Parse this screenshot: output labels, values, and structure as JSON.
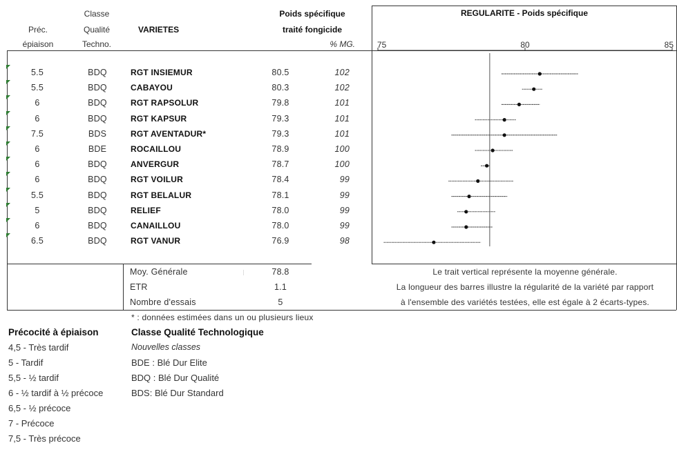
{
  "headers": {
    "prec": [
      "Préc.",
      "épiaison"
    ],
    "classe": [
      "Classe",
      "Qualité",
      "Techno."
    ],
    "varietes": "VARIETES",
    "poids": [
      "Poids spécifique",
      "traité fongicide"
    ],
    "mg": "% MG."
  },
  "rows": [
    {
      "prec": "5.5",
      "classe": "BDQ",
      "variete": "RGT INSIEMUR",
      "poids": "80.5",
      "mg": "102"
    },
    {
      "prec": "5.5",
      "classe": "BDQ",
      "variete": "CABAYOU",
      "poids": "80.3",
      "mg": "102"
    },
    {
      "prec": "6",
      "classe": "BDQ",
      "variete": "RGT RAPSOLUR",
      "poids": "79.8",
      "mg": "101"
    },
    {
      "prec": "6",
      "classe": "BDQ",
      "variete": "RGT KAPSUR",
      "poids": "79.3",
      "mg": "101"
    },
    {
      "prec": "7.5",
      "classe": "BDS",
      "variete": "RGT AVENTADUR*",
      "poids": "79.3",
      "mg": "101"
    },
    {
      "prec": "6",
      "classe": "BDE",
      "variete": "ROCAILLOU",
      "poids": "78.9",
      "mg": "100"
    },
    {
      "prec": "6",
      "classe": "BDQ",
      "variete": "ANVERGUR",
      "poids": "78.7",
      "mg": "100"
    },
    {
      "prec": "6",
      "classe": "BDQ",
      "variete": "RGT VOILUR",
      "poids": "78.4",
      "mg": "99"
    },
    {
      "prec": "5.5",
      "classe": "BDQ",
      "variete": "RGT BELALUR",
      "poids": "78.1",
      "mg": "99"
    },
    {
      "prec": "5",
      "classe": "BDQ",
      "variete": "RELIEF",
      "poids": "78.0",
      "mg": "99"
    },
    {
      "prec": "6",
      "classe": "BDQ",
      "variete": "CANAILLOU",
      "poids": "78.0",
      "mg": "99"
    },
    {
      "prec": "6.5",
      "classe": "BDQ",
      "variete": "RGT VANUR",
      "poids": "76.9",
      "mg": "98"
    }
  ],
  "summary": {
    "moy_label": "Moy. Générale",
    "moy_value": "78.8",
    "etr_label": "ETR",
    "etr_value": "1.1",
    "essais_label": "Nombre d'essais",
    "essais_value": "5"
  },
  "notes": [
    "Le trait vertical représente la moyenne générale.",
    "La longueur des barres illustre la régularité de la variété par rapport",
    "à l'ensemble des variétés testées, elle est égale à 2 écarts-types."
  ],
  "footnote": "* : données estimées dans un ou plusieurs lieux",
  "legend_precocite": {
    "title": "Précocité à épiaison",
    "items": [
      "4,5 - Très tardif",
      "5 - Tardif",
      "5,5 - ½ tardif",
      "6 - ½ tardif à ½ précoce",
      "6,5 - ½ précoce",
      "7 - Précoce",
      "7,5 - Très précoce"
    ]
  },
  "legend_classe": {
    "title": "Classe Qualité Technologique",
    "subtitle": "Nouvelles classes",
    "items": [
      "BDE : Blé Dur Elite",
      "BDQ : Blé Dur Qualité",
      "BDS: Blé Dur Standard"
    ]
  },
  "chart_data": {
    "type": "scatter",
    "title": "REGULARITE - Poids spécifique",
    "xlim": [
      75,
      85
    ],
    "xticks": [
      "75",
      "80",
      "85"
    ],
    "mean": 78.8,
    "categories": [
      "RGT INSIEMUR",
      "CABAYOU",
      "RGT RAPSOLUR",
      "RGT KAPSUR",
      "RGT AVENTADUR*",
      "ROCAILLOU",
      "ANVERGUR",
      "RGT VOILUR",
      "RGT BELALUR",
      "RELIEF",
      "CANAILLOU",
      "RGT VANUR"
    ],
    "values": [
      80.5,
      80.3,
      79.8,
      79.3,
      79.3,
      78.9,
      78.7,
      78.4,
      78.1,
      78.0,
      78.0,
      76.9
    ],
    "bar_low": [
      79.2,
      79.9,
      79.2,
      78.3,
      77.5,
      78.3,
      78.5,
      77.4,
      77.5,
      77.7,
      77.5,
      75.2
    ],
    "bar_high": [
      81.8,
      80.6,
      80.5,
      79.7,
      81.1,
      79.6,
      78.8,
      79.6,
      79.4,
      79.0,
      78.9,
      78.5
    ]
  }
}
